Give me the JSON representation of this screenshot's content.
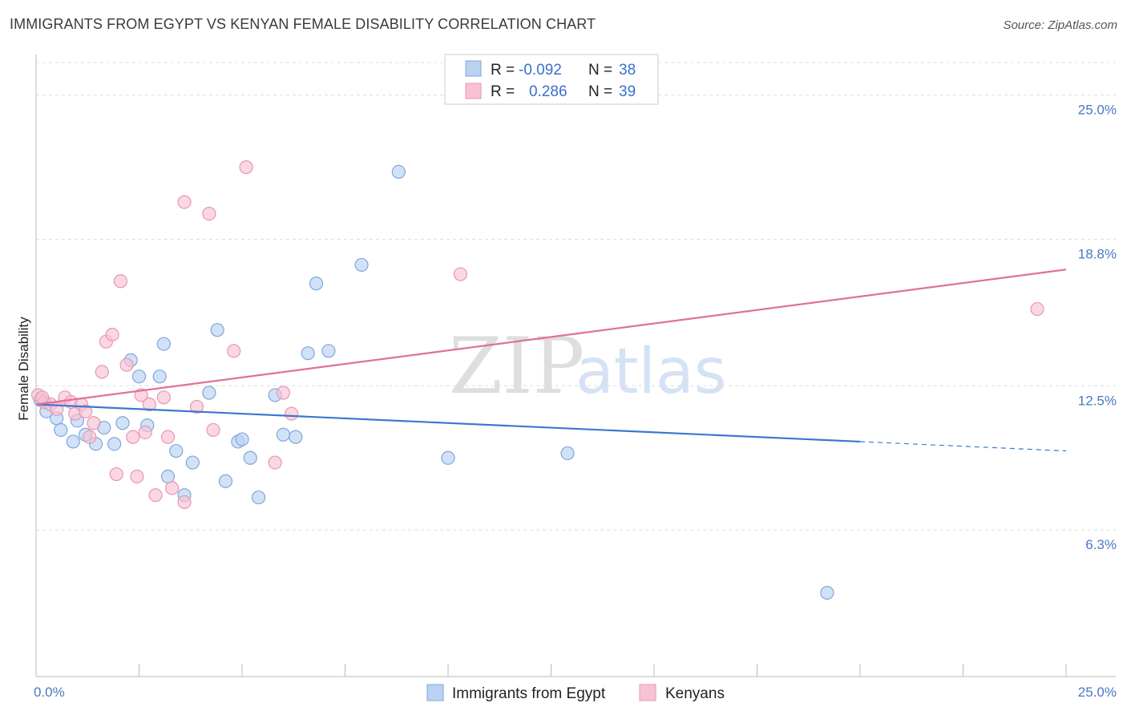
{
  "title": "IMMIGRANTS FROM EGYPT VS KENYAN FEMALE DISABILITY CORRELATION CHART",
  "source": "Source: ZipAtlas.com",
  "watermark": {
    "zip": "ZIP",
    "atlas": "atlas"
  },
  "colors": {
    "blue": "#3a78d0",
    "blue_fill": "#b8d2f2",
    "pink": "#e0709a",
    "pink_fill": "#f7c2d4",
    "tick": "#4a78c2",
    "grid": "#dddddd"
  },
  "legend": {
    "rows": [
      {
        "r_label": "R =",
        "r_value": "-0.092",
        "n_label": "N =",
        "n_value": "38"
      },
      {
        "r_label": "R =",
        "r_value": "0.286",
        "n_label": "N =",
        "n_value": "39"
      }
    ]
  },
  "bottom_legend": [
    "Immigrants from Egypt",
    "Kenyans"
  ],
  "chart_data": {
    "type": "scatter",
    "title": "IMMIGRANTS FROM EGYPT VS KENYAN FEMALE DISABILITY CORRELATION CHART",
    "xlabel": "",
    "ylabel": "Female Disability",
    "xlim": [
      0,
      25
    ],
    "ylim": [
      0,
      26.4
    ],
    "x_tick_labels": [
      "0.0%",
      "25.0%"
    ],
    "y_tick_values": [
      6.3,
      12.5,
      18.8,
      25.0
    ],
    "y_tick_labels": [
      "6.3%",
      "12.5%",
      "18.8%",
      "25.0%"
    ],
    "grid": true,
    "series": [
      {
        "name": "Immigrants from Egypt",
        "color": "#3a78d0",
        "points": [
          [
            0.1,
            11.9
          ],
          [
            0.25,
            11.4
          ],
          [
            0.5,
            11.1
          ],
          [
            0.6,
            10.6
          ],
          [
            0.9,
            10.1
          ],
          [
            1.0,
            11.0
          ],
          [
            1.2,
            10.4
          ],
          [
            1.45,
            10.0
          ],
          [
            1.65,
            10.7
          ],
          [
            1.9,
            10.0
          ],
          [
            2.1,
            10.9
          ],
          [
            2.3,
            13.6
          ],
          [
            2.5,
            12.9
          ],
          [
            2.7,
            10.8
          ],
          [
            3.0,
            12.9
          ],
          [
            3.1,
            14.3
          ],
          [
            3.2,
            8.6
          ],
          [
            3.4,
            9.7
          ],
          [
            3.6,
            7.8
          ],
          [
            3.8,
            9.2
          ],
          [
            4.2,
            12.2
          ],
          [
            4.4,
            14.9
          ],
          [
            4.6,
            8.4
          ],
          [
            4.9,
            10.1
          ],
          [
            5.0,
            10.2
          ],
          [
            5.2,
            9.4
          ],
          [
            5.4,
            7.7
          ],
          [
            5.8,
            12.1
          ],
          [
            6.0,
            10.4
          ],
          [
            6.3,
            10.3
          ],
          [
            6.6,
            13.9
          ],
          [
            6.8,
            16.9
          ],
          [
            7.1,
            14.0
          ],
          [
            7.9,
            17.7
          ],
          [
            8.8,
            21.7
          ],
          [
            10.0,
            9.4
          ],
          [
            12.9,
            9.6
          ],
          [
            19.2,
            3.6
          ]
        ],
        "trend": {
          "x": [
            0,
            20
          ],
          "y": [
            11.7,
            10.1
          ]
        },
        "trend_extension": {
          "x": [
            20,
            25
          ],
          "y": [
            10.1,
            9.7
          ]
        }
      },
      {
        "name": "Kenyans",
        "color": "#e0709a",
        "points": [
          [
            0.05,
            12.1
          ],
          [
            0.2,
            11.8
          ],
          [
            0.35,
            11.7
          ],
          [
            0.5,
            11.5
          ],
          [
            0.7,
            12.0
          ],
          [
            0.85,
            11.8
          ],
          [
            0.95,
            11.3
          ],
          [
            1.1,
            11.7
          ],
          [
            1.2,
            11.4
          ],
          [
            1.3,
            10.3
          ],
          [
            1.4,
            10.9
          ],
          [
            1.6,
            13.1
          ],
          [
            1.7,
            14.4
          ],
          [
            1.85,
            14.7
          ],
          [
            1.95,
            8.7
          ],
          [
            2.05,
            17.0
          ],
          [
            2.2,
            13.4
          ],
          [
            2.35,
            10.3
          ],
          [
            2.45,
            8.6
          ],
          [
            2.55,
            12.1
          ],
          [
            2.65,
            10.5
          ],
          [
            2.75,
            11.7
          ],
          [
            2.9,
            7.8
          ],
          [
            3.1,
            12.0
          ],
          [
            3.2,
            10.3
          ],
          [
            3.3,
            8.1
          ],
          [
            3.6,
            7.5
          ],
          [
            3.6,
            20.4
          ],
          [
            3.9,
            11.6
          ],
          [
            4.2,
            19.9
          ],
          [
            4.3,
            10.6
          ],
          [
            4.8,
            14.0
          ],
          [
            5.1,
            21.9
          ],
          [
            5.8,
            9.2
          ],
          [
            6.0,
            12.2
          ],
          [
            6.2,
            11.3
          ],
          [
            10.3,
            17.3
          ],
          [
            24.3,
            15.8
          ],
          [
            0.15,
            12.0
          ]
        ],
        "trend": {
          "x": [
            0,
            25
          ],
          "y": [
            11.7,
            17.5
          ]
        }
      }
    ]
  }
}
